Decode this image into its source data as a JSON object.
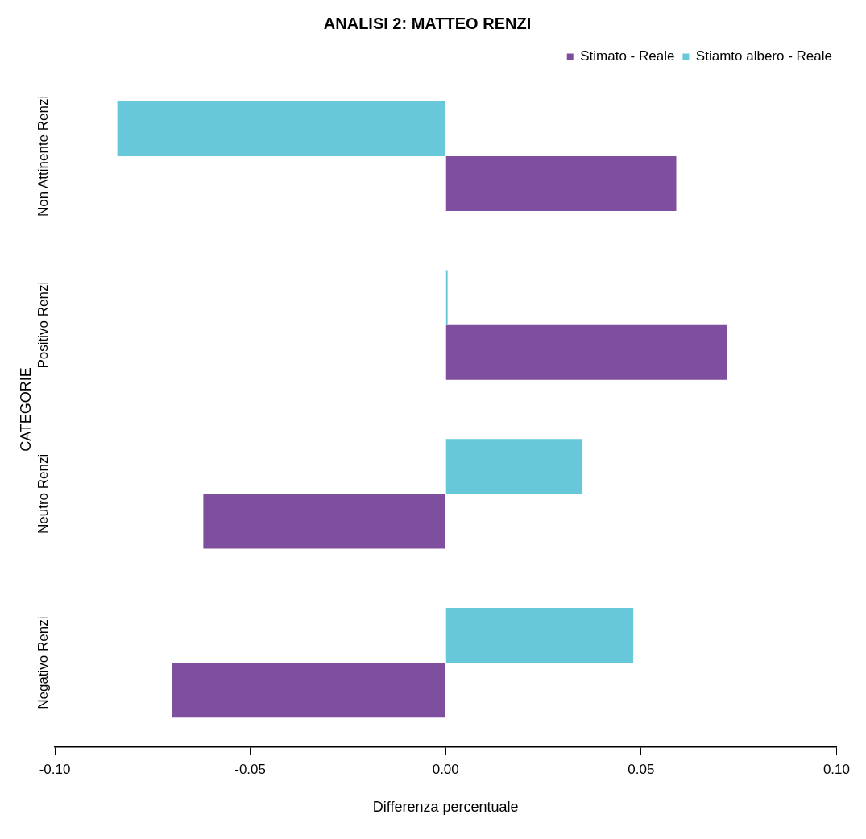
{
  "chart_data": {
    "type": "bar",
    "orientation": "horizontal",
    "title": "ANALISI 2: MATTEO RENZI",
    "xlabel": "Differenza percentuale",
    "ylabel": "CATEGORIE",
    "categories": [
      "Non Attinente Renzi",
      "Positivo Renzi",
      "Neutro Renzi",
      "Negativo Renzi"
    ],
    "series": [
      {
        "name": "Stiamto albero - Reale",
        "color": "#66c8d8",
        "values": [
          -0.084,
          0.0005,
          0.035,
          0.048
        ]
      },
      {
        "name": "Stimato - Reale",
        "color": "#7e4f9e",
        "values": [
          0.059,
          0.072,
          -0.062,
          -0.07
        ]
      }
    ],
    "xlim": [
      -0.1,
      0.1
    ],
    "xticks": [
      {
        "value": -0.1,
        "label": "-0.10"
      },
      {
        "value": -0.05,
        "label": "-0.05"
      },
      {
        "value": 0,
        "label": "0.00"
      },
      {
        "value": 0.05,
        "label": "0.05"
      },
      {
        "value": 0.1,
        "label": "0.10"
      }
    ],
    "grid": false,
    "legend": "top right"
  }
}
